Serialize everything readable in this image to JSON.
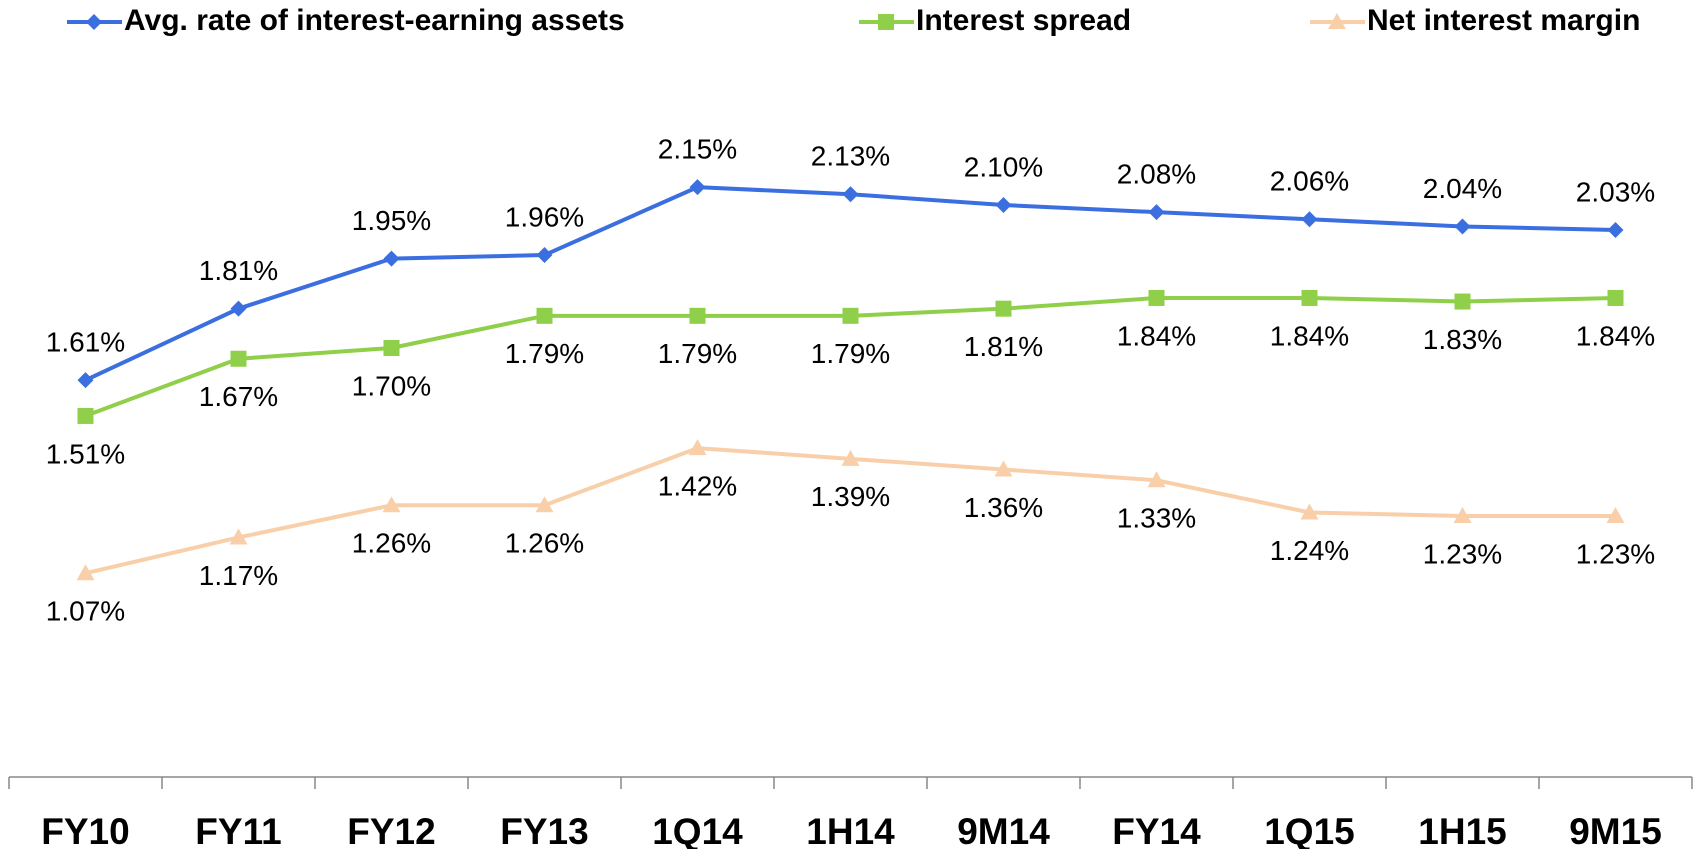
{
  "chart_data": {
    "type": "line",
    "categories": [
      "FY10",
      "FY11",
      "FY12",
      "FY13",
      "1Q14",
      "1H14",
      "9M14",
      "FY14",
      "1Q15",
      "1H15",
      "9M15"
    ],
    "series": [
      {
        "name": "Avg. rate of interest-earning assets",
        "color": "#3b6fe0",
        "marker": "diamond",
        "values": [
          1.61,
          1.81,
          1.95,
          1.96,
          2.15,
          2.13,
          2.1,
          2.08,
          2.06,
          2.04,
          2.03
        ],
        "value_labels": [
          "1.61%",
          "1.81%",
          "1.95%",
          "1.96%",
          "2.15%",
          "2.13%",
          "2.10%",
          "2.08%",
          "2.06%",
          "2.04%",
          "2.03%"
        ]
      },
      {
        "name": "Interest spread",
        "color": "#8fcf4a",
        "marker": "square",
        "values": [
          1.51,
          1.67,
          1.7,
          1.79,
          1.79,
          1.79,
          1.81,
          1.84,
          1.84,
          1.83,
          1.84
        ],
        "value_labels": [
          "1.51%",
          "1.67%",
          "1.70%",
          "1.79%",
          "1.79%",
          "1.79%",
          "1.81%",
          "1.84%",
          "1.84%",
          "1.83%",
          "1.84%"
        ]
      },
      {
        "name": "Net interest margin",
        "color": "#f9cfa9",
        "marker": "triangle",
        "values": [
          1.07,
          1.17,
          1.26,
          1.26,
          1.42,
          1.39,
          1.36,
          1.33,
          1.24,
          1.23,
          1.23
        ],
        "value_labels": [
          "1.07%",
          "1.17%",
          "1.26%",
          "1.26%",
          "1.42%",
          "1.39%",
          "1.36%",
          "1.33%",
          "1.24%",
          "1.23%",
          "1.23%"
        ]
      }
    ],
    "ylim": [
      0.5,
      2.5
    ],
    "legend": "top"
  }
}
